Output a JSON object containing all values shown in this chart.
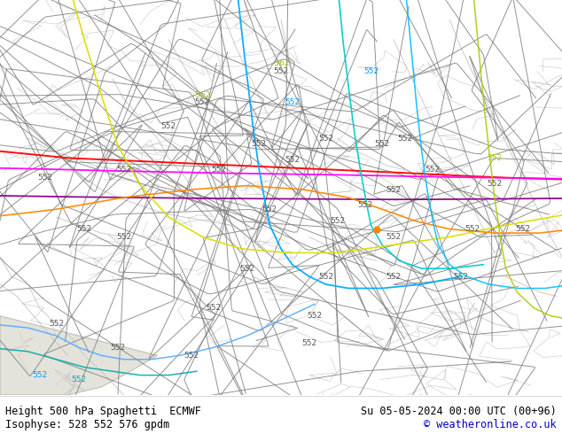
{
  "title_left": "Height 500 hPa Spaghetti  ECMWF",
  "title_right": "Su 05-05-2024 00:00 UTC (00+96)",
  "subtitle_left": "Isophyse: 528 552 576 gpdm",
  "subtitle_right": "© weatheronline.co.uk",
  "background_color": "#b5e878",
  "footer_bg": "#ffffff",
  "footer_text_color": "#000000",
  "copyright_color": "#0000cc",
  "figsize": [
    6.34,
    4.9
  ],
  "dpi": 100,
  "ensemble_color": "#777777",
  "ensemble_lw": 0.7,
  "special_lines": [
    {
      "color": "#ff0000",
      "lw": 1.3
    },
    {
      "color": "#ff00ff",
      "lw": 1.3
    },
    {
      "color": "#cc00cc",
      "lw": 1.2
    },
    {
      "color": "#0099ff",
      "lw": 1.2
    },
    {
      "color": "#00cccc",
      "lw": 1.2
    },
    {
      "color": "#dddd00",
      "lw": 1.2
    },
    {
      "color": "#ff8800",
      "lw": 1.2
    },
    {
      "color": "#00aa00",
      "lw": 1.1
    },
    {
      "color": "#ffff00",
      "lw": 1.1
    },
    {
      "color": "#ff6688",
      "lw": 1.1
    }
  ],
  "label_552_color": "#555555",
  "label_562_color": "#99bb00",
  "label_fontsize": 6.5
}
